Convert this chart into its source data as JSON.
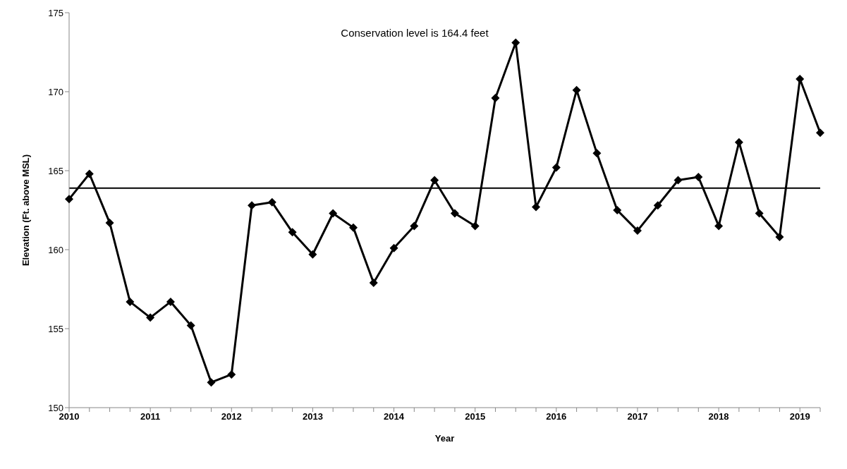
{
  "chart_data": {
    "type": "line",
    "xlabel": "Year",
    "ylabel": "Elevation (Ft. above MSL)",
    "categories": [
      "2010",
      null,
      null,
      null,
      "2011",
      null,
      null,
      null,
      "2012",
      null,
      null,
      null,
      "2013",
      null,
      null,
      null,
      "2014",
      null,
      null,
      null,
      "2015",
      null,
      null,
      null,
      "2016",
      null,
      null,
      null,
      "2017",
      null,
      null,
      null,
      "2018",
      null,
      null,
      null,
      "2019",
      null
    ],
    "series": [
      {
        "color": "#000000",
        "values": [
          163.2,
          164.8,
          161.7,
          156.7,
          155.7,
          156.7,
          155.2,
          151.6,
          152.1,
          162.8,
          163.0,
          161.1,
          159.7,
          162.3,
          161.4,
          157.9,
          160.1,
          161.5,
          164.4,
          162.3,
          161.5,
          169.6,
          173.1,
          162.7,
          165.2,
          170.1,
          166.1,
          162.5,
          161.2,
          162.8,
          164.4,
          164.6,
          161.5,
          166.8,
          162.3,
          160.8,
          170.8,
          167.4
        ]
      }
    ],
    "ylim": [
      150,
      175
    ],
    "yticks": [
      150,
      155,
      160,
      165,
      170,
      175
    ],
    "ref_lines": [
      {
        "axis": "y",
        "value": 163.9,
        "color": "#000000"
      }
    ],
    "annotations": [
      "Conservation level is 164.4 feet"
    ],
    "marker": "diamond",
    "line_style": "solid",
    "grid": false,
    "legend": false
  }
}
